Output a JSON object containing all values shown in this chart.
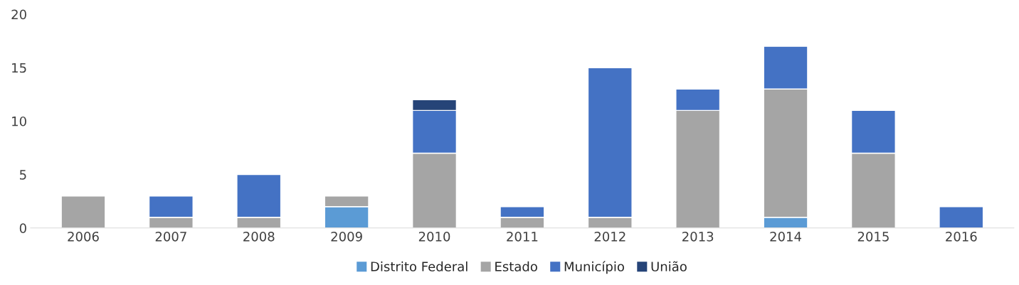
{
  "chart_data": {
    "type": "bar",
    "stacked": true,
    "categories": [
      "2006",
      "2007",
      "2008",
      "2009",
      "2010",
      "2011",
      "2012",
      "2013",
      "2014",
      "2015",
      "2016"
    ],
    "series": [
      {
        "name": "Distrito Federal",
        "color": "#5b9bd5",
        "values": [
          null,
          null,
          null,
          2,
          null,
          null,
          null,
          null,
          1,
          null,
          null
        ]
      },
      {
        "name": "Estado",
        "color": "#a5a5a5",
        "values": [
          3,
          1,
          1,
          1,
          7,
          1,
          1,
          11,
          12,
          7,
          null
        ]
      },
      {
        "name": "Município",
        "color": "#4472c4",
        "values": [
          null,
          2,
          4,
          null,
          4,
          1,
          14,
          2,
          4,
          4,
          2
        ]
      },
      {
        "name": "União",
        "color": "#264478",
        "values": [
          null,
          null,
          null,
          null,
          1,
          null,
          null,
          null,
          null,
          null,
          null
        ]
      }
    ],
    "ylim": [
      0,
      20
    ],
    "yticks": [
      0,
      5,
      10,
      15,
      20
    ],
    "grid": false,
    "legend": "bottom"
  }
}
